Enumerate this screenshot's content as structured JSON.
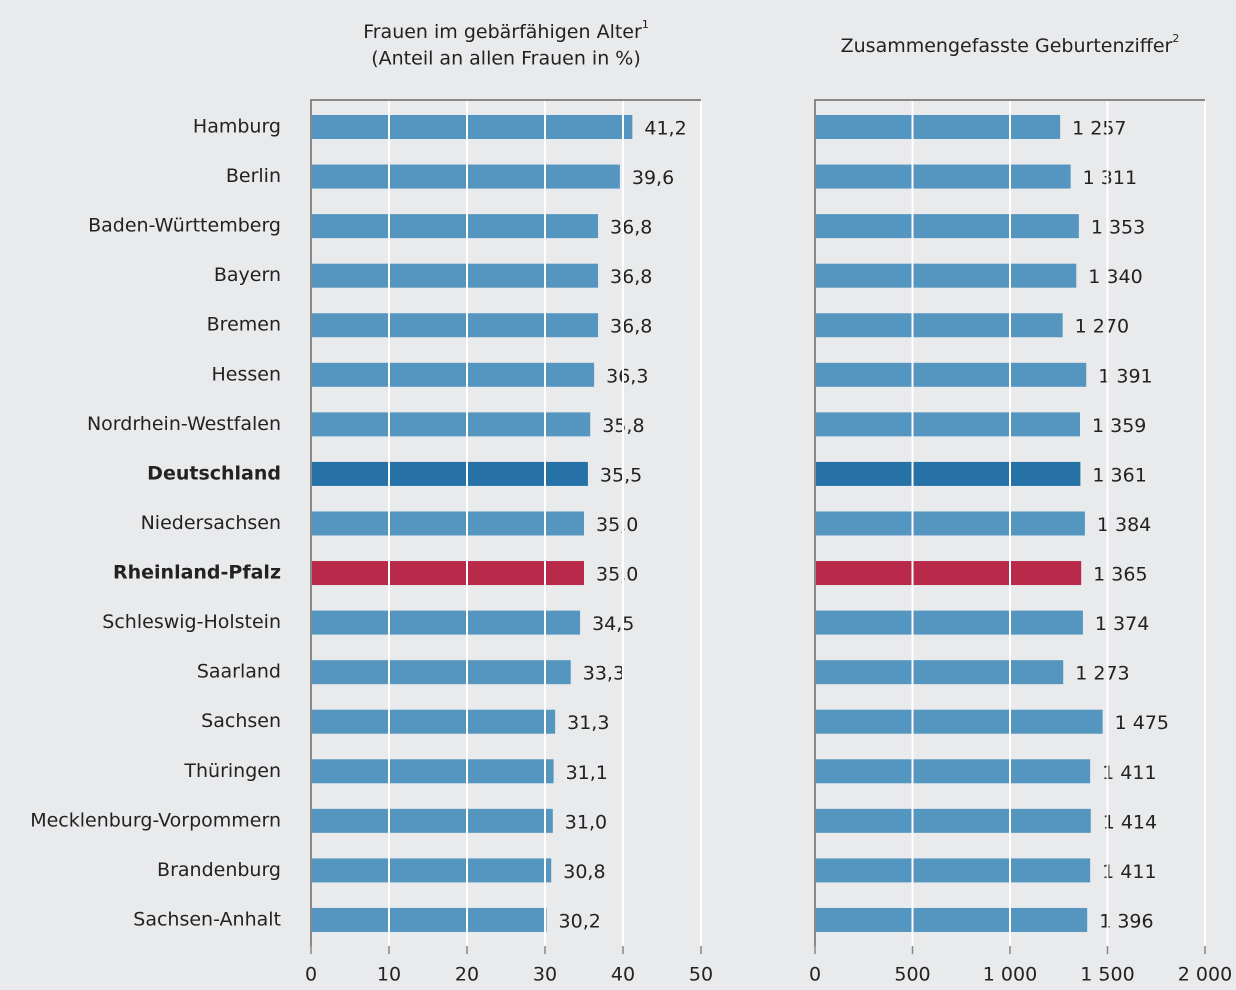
{
  "chart_data": [
    {
      "type": "hbar",
      "title": "Frauen im gebärfähigen Alter",
      "title_footnote": "1",
      "subtitle": "(Anteil an allen Frauen in %)",
      "categories": [
        "Hamburg",
        "Berlin",
        "Baden-Württemberg",
        "Bayern",
        "Bremen",
        "Hessen",
        "Nordrhein-Westfalen",
        "Deutschland",
        "Niedersachsen",
        "Rheinland-Pfalz",
        "Schleswig-Holstein",
        "Saarland",
        "Sachsen",
        "Thüringen",
        "Mecklenburg-Vorpommern",
        "Brandenburg",
        "Sachsen-Anhalt"
      ],
      "values": [
        41.2,
        39.6,
        36.8,
        36.8,
        36.8,
        36.3,
        35.8,
        35.5,
        35.0,
        35.0,
        34.5,
        33.3,
        31.3,
        31.1,
        31.0,
        30.8,
        30.2
      ],
      "value_labels": [
        "41,2",
        "39,6",
        "36,8",
        "36,8",
        "36,8",
        "36,3",
        "35,8",
        "35,5",
        "35,0",
        "35,0",
        "34,5",
        "33,3",
        "31,3",
        "31,1",
        "31,0",
        "30,8",
        "30,2"
      ],
      "color": "#5596c0",
      "value_color": "#1a7bb0",
      "highlights": [
        {
          "index": 7,
          "color": "#2672a6",
          "label_color": "#1f7ab3",
          "value_color": "#1a7bb0"
        },
        {
          "index": 9,
          "color": "#b8294a",
          "label_color": "#b8294a",
          "value_color": "#b8294a"
        }
      ],
      "xlim": [
        0,
        50
      ],
      "xticks": [
        0,
        10,
        20,
        30,
        40,
        50
      ],
      "grid": true
    },
    {
      "type": "hbar",
      "title": "Zusammengefasste Geburtenziffer",
      "title_footnote": "2",
      "values": [
        1257,
        1311,
        1353,
        1340,
        1270,
        1391,
        1359,
        1361,
        1384,
        1365,
        1374,
        1273,
        1475,
        1411,
        1414,
        1411,
        1396
      ],
      "value_labels": [
        "1 257",
        "1 311",
        "1 353",
        "1 340",
        "1 270",
        "1 391",
        "1 359",
        "1 361",
        "1 384",
        "1 365",
        "1 374",
        "1 273",
        "1 475",
        "1 411",
        "1 414",
        "1 411",
        "1 396"
      ],
      "color": "#5596c0",
      "value_color": "#1a7bb0",
      "highlights": [
        {
          "index": 7,
          "color": "#2672a6",
          "value_color": "#1a7bb0"
        },
        {
          "index": 9,
          "color": "#b8294a",
          "value_color": "#b8294a"
        }
      ],
      "xlim": [
        0,
        2000
      ],
      "xticks": [
        0,
        500,
        {
          "value": 1000,
          "label": "1 000"
        },
        {
          "value": 1500,
          "label": "1 500"
        },
        {
          "value": 2000,
          "label": "2 000"
        }
      ],
      "grid": true
    }
  ]
}
